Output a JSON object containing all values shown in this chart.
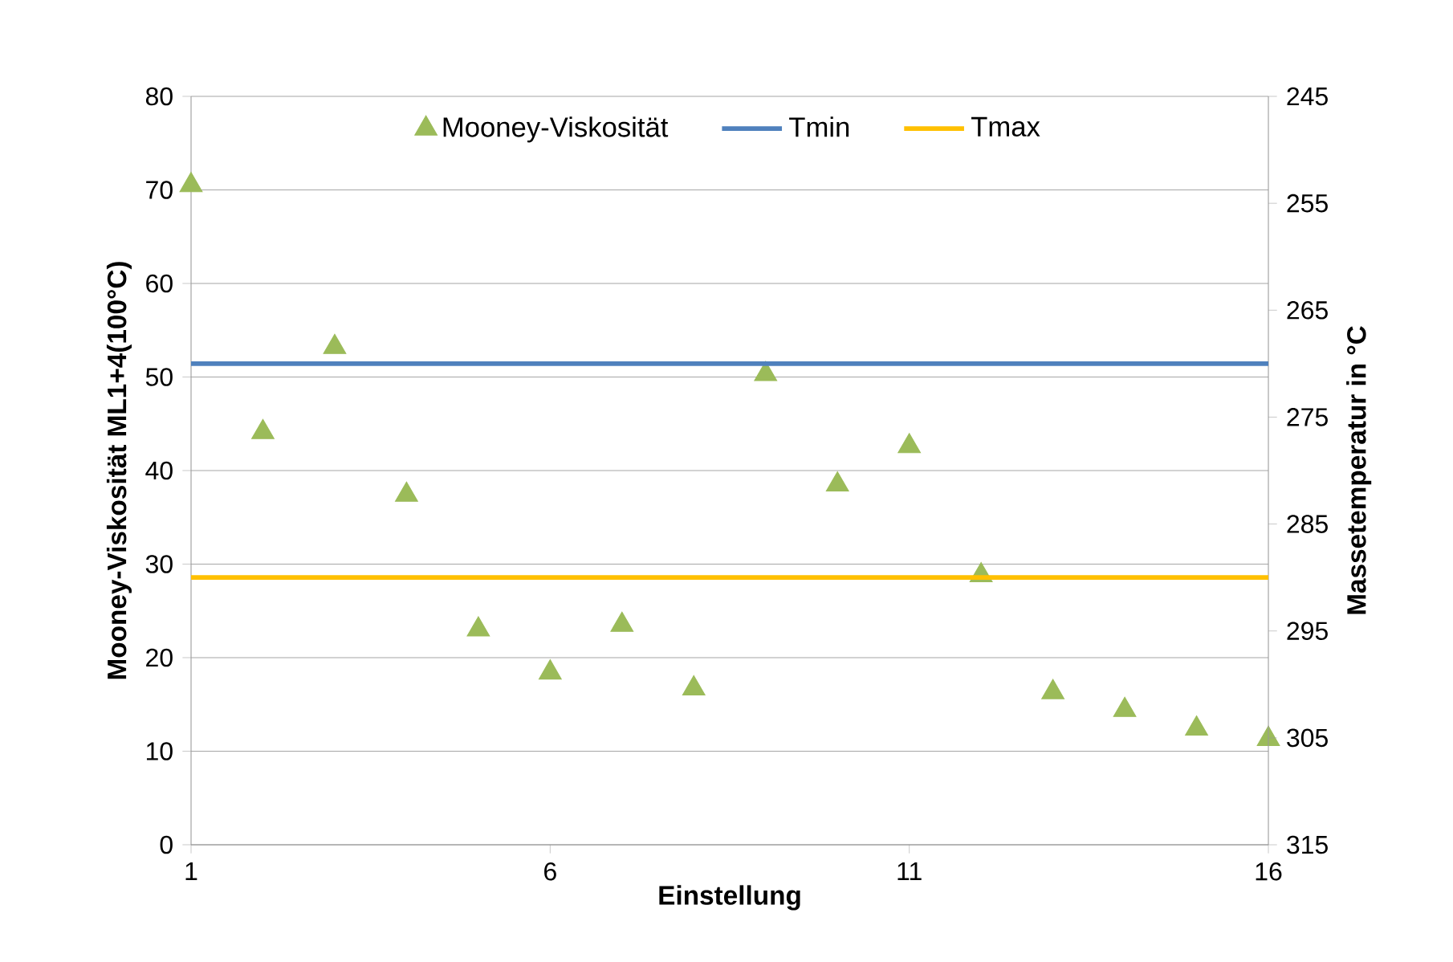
{
  "chart_data": {
    "type": "scatter",
    "xlabel": "Einstellung",
    "ylabel": "Mooney-Viskosität  ML1+4(100°C)",
    "y2label": "Massetemperatur in °C",
    "x": [
      1,
      2,
      3,
      4,
      5,
      6,
      7,
      8,
      9,
      10,
      11,
      12,
      13,
      14,
      15,
      16
    ],
    "series": [
      {
        "name": "Mooney-Viskosität",
        "color": "#9bbb59",
        "marker": "triangle",
        "values": [
          70.5,
          44.1,
          53.2,
          37.4,
          23.0,
          18.4,
          23.5,
          16.7,
          50.3,
          38.5,
          42.6,
          28.8,
          16.3,
          14.4,
          12.4,
          11.3
        ]
      },
      {
        "name": "Tmin",
        "type": "line",
        "axis": "y2",
        "color": "#4f81bd",
        "values": [
          270,
          270,
          270,
          270,
          270,
          270,
          270,
          270,
          270,
          270,
          270,
          270,
          270,
          270,
          270,
          270
        ]
      },
      {
        "name": "Tmax",
        "type": "line",
        "axis": "y2",
        "color": "#ffc000",
        "values": [
          290,
          290,
          290,
          290,
          290,
          290,
          290,
          290,
          290,
          290,
          290,
          290,
          290,
          290,
          290,
          290
        ]
      }
    ],
    "xlim": [
      1,
      16
    ],
    "xticks": [
      1,
      6,
      11,
      16
    ],
    "ylim": [
      0,
      80
    ],
    "yticks": [
      0,
      10,
      20,
      30,
      40,
      50,
      60,
      70,
      80
    ],
    "y2lim": [
      315,
      245
    ],
    "y2ticks": [
      245,
      255,
      265,
      275,
      285,
      295,
      305,
      315
    ],
    "grid": "y",
    "legend": "top"
  }
}
